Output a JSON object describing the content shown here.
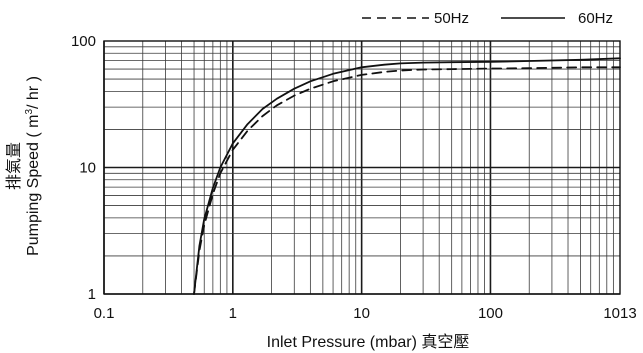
{
  "chart_data": {
    "type": "line",
    "title": "",
    "xlabel": "Inlet Pressure (mbar) 真空壓",
    "ylabel_cjk": "排氣量",
    "ylabel_main": "Pumping Speed ( m",
    "ylabel_sup": "3",
    "ylabel_end": "/ hr )",
    "x_scale": "log",
    "y_scale": "log",
    "xlim": [
      0.1,
      1013
    ],
    "ylim": [
      1,
      100
    ],
    "x_ticks": [
      0.1,
      1,
      10,
      100,
      1013
    ],
    "x_tick_labels": [
      "0.1",
      "1",
      "10",
      "100",
      "1013"
    ],
    "y_ticks": [
      1,
      10,
      100
    ],
    "y_tick_labels": [
      "1",
      "10",
      "100"
    ],
    "grid": true,
    "legend_position": "top-right",
    "series": [
      {
        "name": "50Hz",
        "style": "dashed",
        "color": "#111111",
        "x": [
          0.5,
          0.55,
          0.6,
          0.7,
          0.8,
          1.0,
          1.3,
          1.7,
          2.2,
          3,
          4,
          6,
          10,
          15,
          20,
          30,
          50,
          100,
          200,
          500,
          1013
        ],
        "y": [
          1,
          2.2,
          3.5,
          6.2,
          9.0,
          13.8,
          19.5,
          25.5,
          31,
          37,
          42,
          48,
          54,
          57,
          58.5,
          59.5,
          60,
          60.5,
          61,
          62,
          62
        ]
      },
      {
        "name": "60Hz",
        "style": "solid",
        "color": "#111111",
        "x": [
          0.5,
          0.55,
          0.6,
          0.7,
          0.8,
          1.0,
          1.3,
          1.7,
          2.2,
          3,
          4,
          6,
          10,
          15,
          20,
          30,
          50,
          100,
          200,
          500,
          1013
        ],
        "y": [
          1,
          2.4,
          3.9,
          6.9,
          10.0,
          15.5,
          22,
          29,
          35,
          42,
          48,
          55,
          62,
          65,
          66.5,
          67.5,
          68,
          68.5,
          69.5,
          71,
          73
        ]
      }
    ]
  }
}
